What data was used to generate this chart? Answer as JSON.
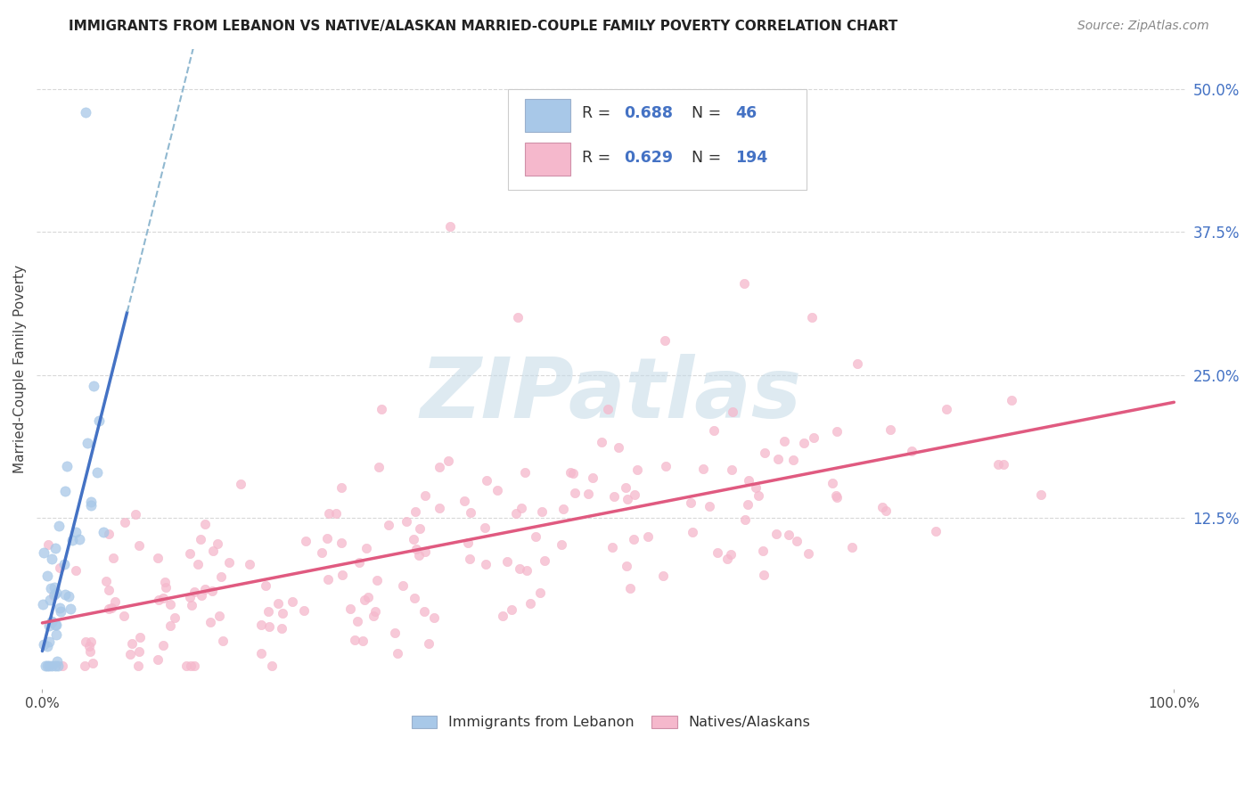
{
  "title": "IMMIGRANTS FROM LEBANON VS NATIVE/ALASKAN MARRIED-COUPLE FAMILY POVERTY CORRELATION CHART",
  "source": "Source: ZipAtlas.com",
  "ylabel": "Married-Couple Family Poverty",
  "ytick_vals": [
    0.0,
    0.125,
    0.25,
    0.375,
    0.5
  ],
  "ytick_labels": [
    "",
    "12.5%",
    "25.0%",
    "37.5%",
    "50.0%"
  ],
  "xtick_vals": [
    0.0,
    1.0
  ],
  "xtick_labels": [
    "0.0%",
    "100.0%"
  ],
  "xlim": [
    -0.005,
    1.01
  ],
  "ylim": [
    -0.025,
    0.535
  ],
  "legend_R1": "0.688",
  "legend_N1": "46",
  "legend_R2": "0.629",
  "legend_N2": "194",
  "color_lebanon": "#a8c8e8",
  "color_native": "#f5b8cc",
  "color_lebanon_line": "#4472c4",
  "color_native_line": "#e05a80",
  "color_dashed_line": "#90b8d0",
  "watermark_text": "ZIPatlas",
  "watermark_color": "#c8dce8",
  "grid_color": "#d8d8d8",
  "tick_label_color": "#4472c4",
  "title_color": "#222222",
  "source_color": "#888888"
}
